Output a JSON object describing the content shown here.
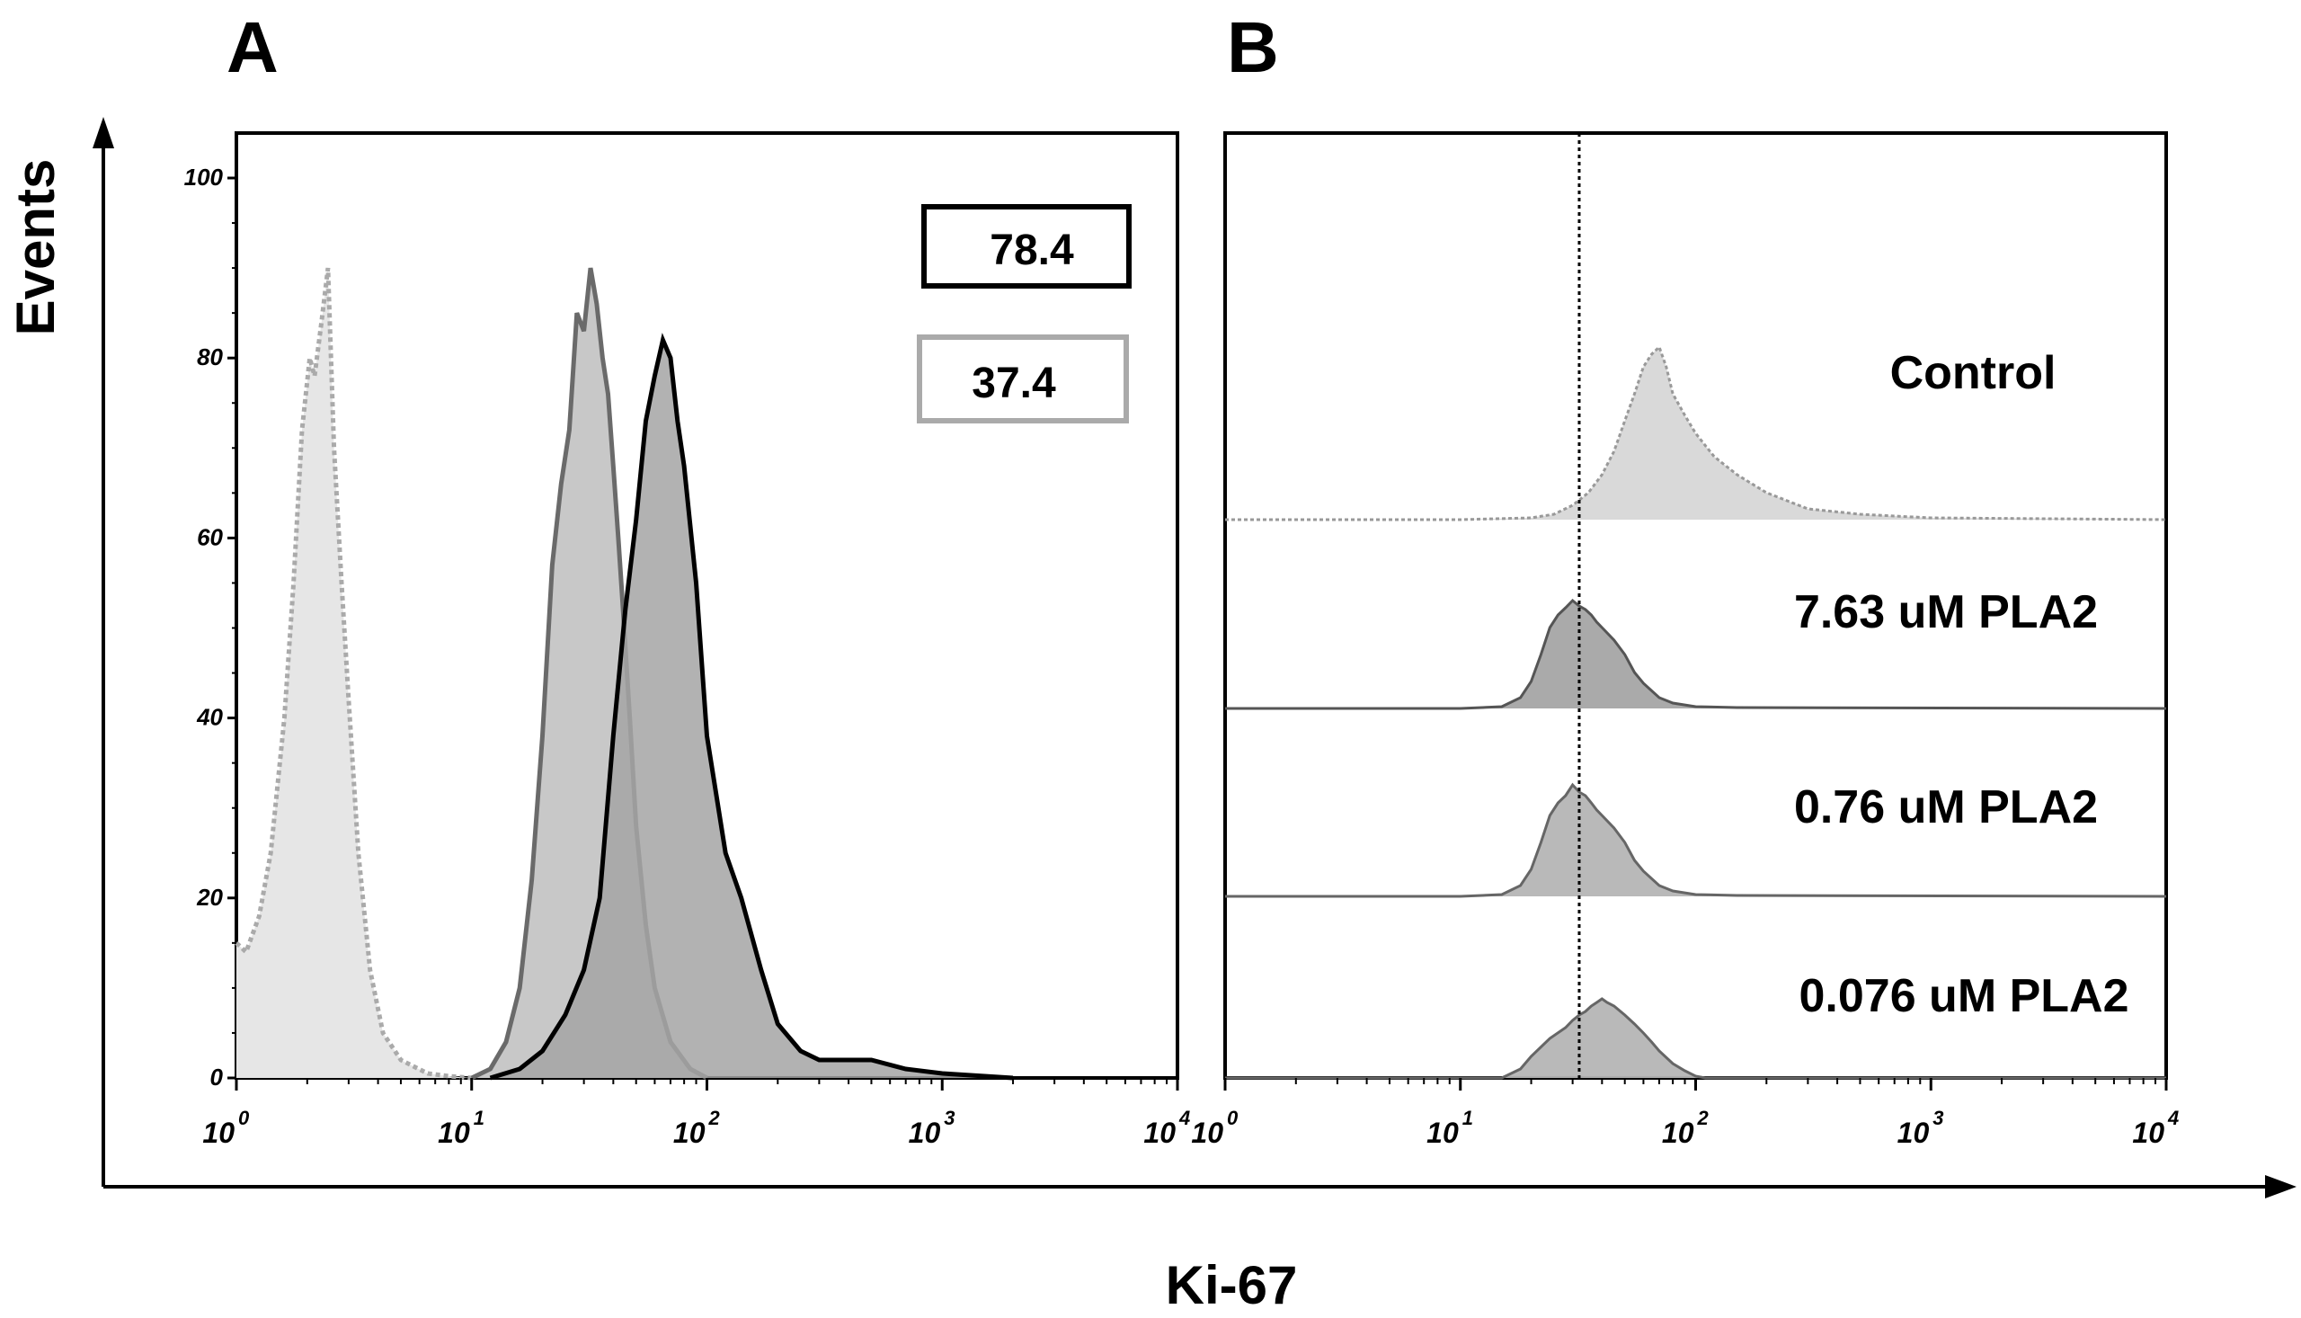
{
  "figure": {
    "panel_a_letter": "A",
    "panel_b_letter": "B",
    "y_axis_title": "Events",
    "x_axis_title": "Ki-67"
  },
  "chart_data": [
    {
      "panel": "A",
      "type": "area",
      "x_scale": "log",
      "xlim": [
        1,
        10000
      ],
      "ylim": [
        0,
        100
      ],
      "x_ticks": [
        1,
        10,
        100,
        1000,
        10000
      ],
      "y_ticks": [
        0,
        20,
        40,
        60,
        80,
        100
      ],
      "y_tick_labels": [
        "0",
        "20",
        "40",
        "60",
        "80",
        "100"
      ],
      "annotations": [
        "78.4",
        "37.4"
      ],
      "series": [
        {
          "style": "dotted-light-gray",
          "color": "#e6e6e6",
          "stroke": "#aaaaaa",
          "points": [
            [
              1.0,
              15
            ],
            [
              1.1,
              14
            ],
            [
              1.25,
              18
            ],
            [
              1.4,
              25
            ],
            [
              1.6,
              40
            ],
            [
              1.75,
              55
            ],
            [
              1.9,
              72
            ],
            [
              2.05,
              80
            ],
            [
              2.15,
              78
            ],
            [
              2.3,
              84
            ],
            [
              2.45,
              90
            ],
            [
              2.6,
              70
            ],
            [
              2.8,
              55
            ],
            [
              3.0,
              42
            ],
            [
              3.3,
              25
            ],
            [
              3.7,
              12
            ],
            [
              4.2,
              5
            ],
            [
              5.0,
              2
            ],
            [
              6.5,
              0.5
            ],
            [
              8,
              0.2
            ],
            [
              10,
              0
            ]
          ]
        },
        {
          "style": "solid-gray",
          "color": "#c8c8c8",
          "stroke": "#6a6a6a",
          "points": [
            [
              10,
              0
            ],
            [
              12,
              1
            ],
            [
              14,
              4
            ],
            [
              16,
              10
            ],
            [
              18,
              22
            ],
            [
              20,
              38
            ],
            [
              22,
              57
            ],
            [
              24,
              66
            ],
            [
              26,
              72
            ],
            [
              28,
              85
            ],
            [
              30,
              83
            ],
            [
              32,
              90
            ],
            [
              34,
              86
            ],
            [
              36,
              80
            ],
            [
              38,
              76
            ],
            [
              40,
              68
            ],
            [
              42,
              60
            ],
            [
              44,
              52
            ],
            [
              47,
              40
            ],
            [
              50,
              28
            ],
            [
              55,
              17
            ],
            [
              60,
              10
            ],
            [
              70,
              4
            ],
            [
              85,
              1
            ],
            [
              100,
              0
            ]
          ]
        },
        {
          "style": "solid-black",
          "color": "#a5a5a5",
          "stroke": "#000000",
          "points": [
            [
              12,
              0
            ],
            [
              16,
              1
            ],
            [
              20,
              3
            ],
            [
              25,
              7
            ],
            [
              30,
              12
            ],
            [
              35,
              20
            ],
            [
              40,
              38
            ],
            [
              45,
              52
            ],
            [
              50,
              62
            ],
            [
              55,
              73
            ],
            [
              60,
              78
            ],
            [
              65,
              82
            ],
            [
              70,
              80
            ],
            [
              75,
              73
            ],
            [
              80,
              68
            ],
            [
              90,
              55
            ],
            [
              100,
              38
            ],
            [
              120,
              25
            ],
            [
              140,
              20
            ],
            [
              170,
              12
            ],
            [
              200,
              6
            ],
            [
              250,
              3
            ],
            [
              300,
              2
            ],
            [
              400,
              2
            ],
            [
              500,
              2
            ],
            [
              700,
              1
            ],
            [
              1000,
              0.5
            ],
            [
              2000,
              0
            ]
          ]
        }
      ]
    },
    {
      "panel": "B",
      "type": "area",
      "x_scale": "log",
      "xlim": [
        1,
        10000
      ],
      "x_ticks": [
        1,
        10,
        100,
        1000,
        10000
      ],
      "reference_line_x": 32,
      "tracks": [
        {
          "label": "Control",
          "color": "#d7d7d7",
          "stroke": "#999999",
          "stroke_style": "dotted",
          "points": [
            [
              1,
              0
            ],
            [
              10,
              0
            ],
            [
              20,
              1
            ],
            [
              25,
              3
            ],
            [
              30,
              8
            ],
            [
              35,
              15
            ],
            [
              40,
              25
            ],
            [
              45,
              38
            ],
            [
              50,
              55
            ],
            [
              55,
              70
            ],
            [
              60,
              85
            ],
            [
              65,
              92
            ],
            [
              70,
              96
            ],
            [
              75,
              85
            ],
            [
              80,
              70
            ],
            [
              90,
              58
            ],
            [
              100,
              48
            ],
            [
              120,
              35
            ],
            [
              150,
              25
            ],
            [
              200,
              15
            ],
            [
              300,
              6
            ],
            [
              500,
              3
            ],
            [
              700,
              2
            ],
            [
              1000,
              1
            ],
            [
              10000,
              0
            ]
          ]
        },
        {
          "label": "7.63 uM PLA2",
          "color": "#a5a5a5",
          "stroke": "#555555",
          "stroke_style": "solid",
          "points": [
            [
              1,
              0
            ],
            [
              10,
              0
            ],
            [
              15,
              1
            ],
            [
              18,
              6
            ],
            [
              20,
              15
            ],
            [
              22,
              30
            ],
            [
              24,
              45
            ],
            [
              26,
              52
            ],
            [
              28,
              56
            ],
            [
              30,
              60
            ],
            [
              32,
              57
            ],
            [
              34,
              55
            ],
            [
              36,
              52
            ],
            [
              38,
              48
            ],
            [
              40,
              45
            ],
            [
              45,
              38
            ],
            [
              50,
              30
            ],
            [
              55,
              20
            ],
            [
              60,
              14
            ],
            [
              70,
              6
            ],
            [
              80,
              3
            ],
            [
              100,
              1
            ],
            [
              150,
              0.5
            ],
            [
              10000,
              0
            ]
          ]
        },
        {
          "label": "0.76 uM PLA2",
          "color": "#b5b5b5",
          "stroke": "#666666",
          "stroke_style": "solid",
          "points": [
            [
              1,
              0
            ],
            [
              10,
              0
            ],
            [
              15,
              1
            ],
            [
              18,
              6
            ],
            [
              20,
              15
            ],
            [
              22,
              30
            ],
            [
              24,
              45
            ],
            [
              26,
              52
            ],
            [
              28,
              56
            ],
            [
              30,
              62
            ],
            [
              32,
              58
            ],
            [
              34,
              56
            ],
            [
              36,
              52
            ],
            [
              38,
              48
            ],
            [
              40,
              45
            ],
            [
              45,
              38
            ],
            [
              50,
              30
            ],
            [
              55,
              20
            ],
            [
              60,
              14
            ],
            [
              70,
              6
            ],
            [
              80,
              3
            ],
            [
              100,
              1
            ],
            [
              150,
              0.5
            ],
            [
              10000,
              0
            ]
          ]
        },
        {
          "label": "0.076 uM PLA2",
          "color": "#b5b5b5",
          "stroke": "#666666",
          "stroke_style": "solid",
          "points": [
            [
              1,
              0
            ],
            [
              15,
              0
            ],
            [
              18,
              5
            ],
            [
              20,
              12
            ],
            [
              24,
              22
            ],
            [
              28,
              28
            ],
            [
              30,
              32
            ],
            [
              32,
              35
            ],
            [
              34,
              37
            ],
            [
              36,
              40
            ],
            [
              38,
              42
            ],
            [
              40,
              44
            ],
            [
              42,
              42
            ],
            [
              45,
              40
            ],
            [
              50,
              35
            ],
            [
              55,
              30
            ],
            [
              60,
              25
            ],
            [
              65,
              20
            ],
            [
              70,
              15
            ],
            [
              80,
              8
            ],
            [
              90,
              4
            ],
            [
              100,
              1
            ],
            [
              110,
              0
            ],
            [
              10000,
              0
            ]
          ]
        }
      ]
    }
  ]
}
